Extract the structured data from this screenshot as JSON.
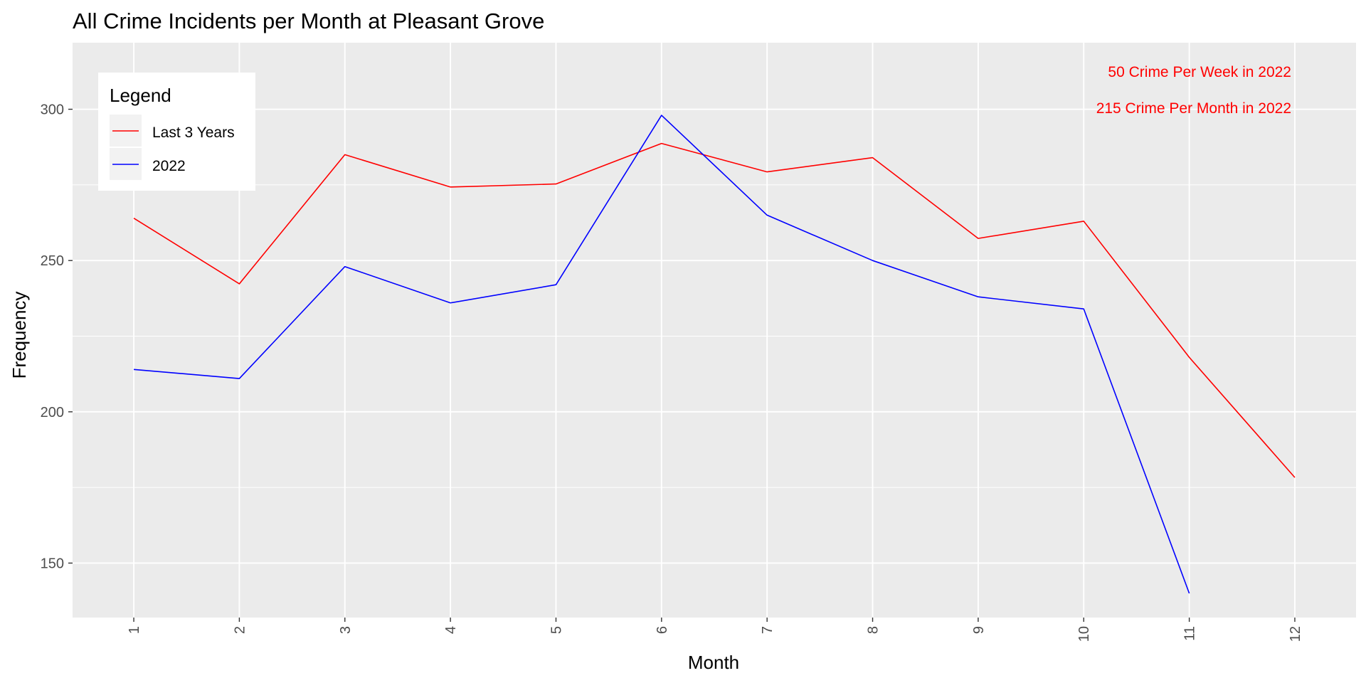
{
  "chart_data": {
    "type": "line",
    "title": "All Crime Incidents per Month at Pleasant Grove",
    "xlabel": "Month",
    "ylabel": "Frequency",
    "x": [
      1,
      2,
      3,
      4,
      5,
      6,
      7,
      8,
      9,
      10,
      11,
      12
    ],
    "x_tick_labels": [
      "1",
      "2",
      "3",
      "4",
      "5",
      "6",
      "7",
      "8",
      "9",
      "10",
      "11",
      "12"
    ],
    "xlim": [
      0.42,
      12.58
    ],
    "ylim": [
      132,
      322
    ],
    "y_ticks": [
      150,
      200,
      250,
      300
    ],
    "y_tick_labels": [
      "150",
      "200",
      "250",
      "300"
    ],
    "grid": true,
    "series": [
      {
        "name": "Last 3 Years",
        "color": "#ff0000",
        "values": [
          264,
          242.3,
          285,
          274.3,
          275.3,
          288.7,
          279.3,
          284,
          257.3,
          263,
          218,
          178.3
        ]
      },
      {
        "name": "2022",
        "color": "#0000ff",
        "values": [
          214,
          211,
          248,
          236,
          242,
          298,
          265,
          250,
          238,
          234,
          140,
          null
        ]
      }
    ],
    "legend": {
      "title": "Legend",
      "placement": "top-left"
    },
    "annotations": [
      {
        "text": "50 Crime Per Week in 2022",
        "color": "#ff0000"
      },
      {
        "text": "215 Crime Per Month in 2022",
        "color": "#ff0000"
      }
    ]
  }
}
